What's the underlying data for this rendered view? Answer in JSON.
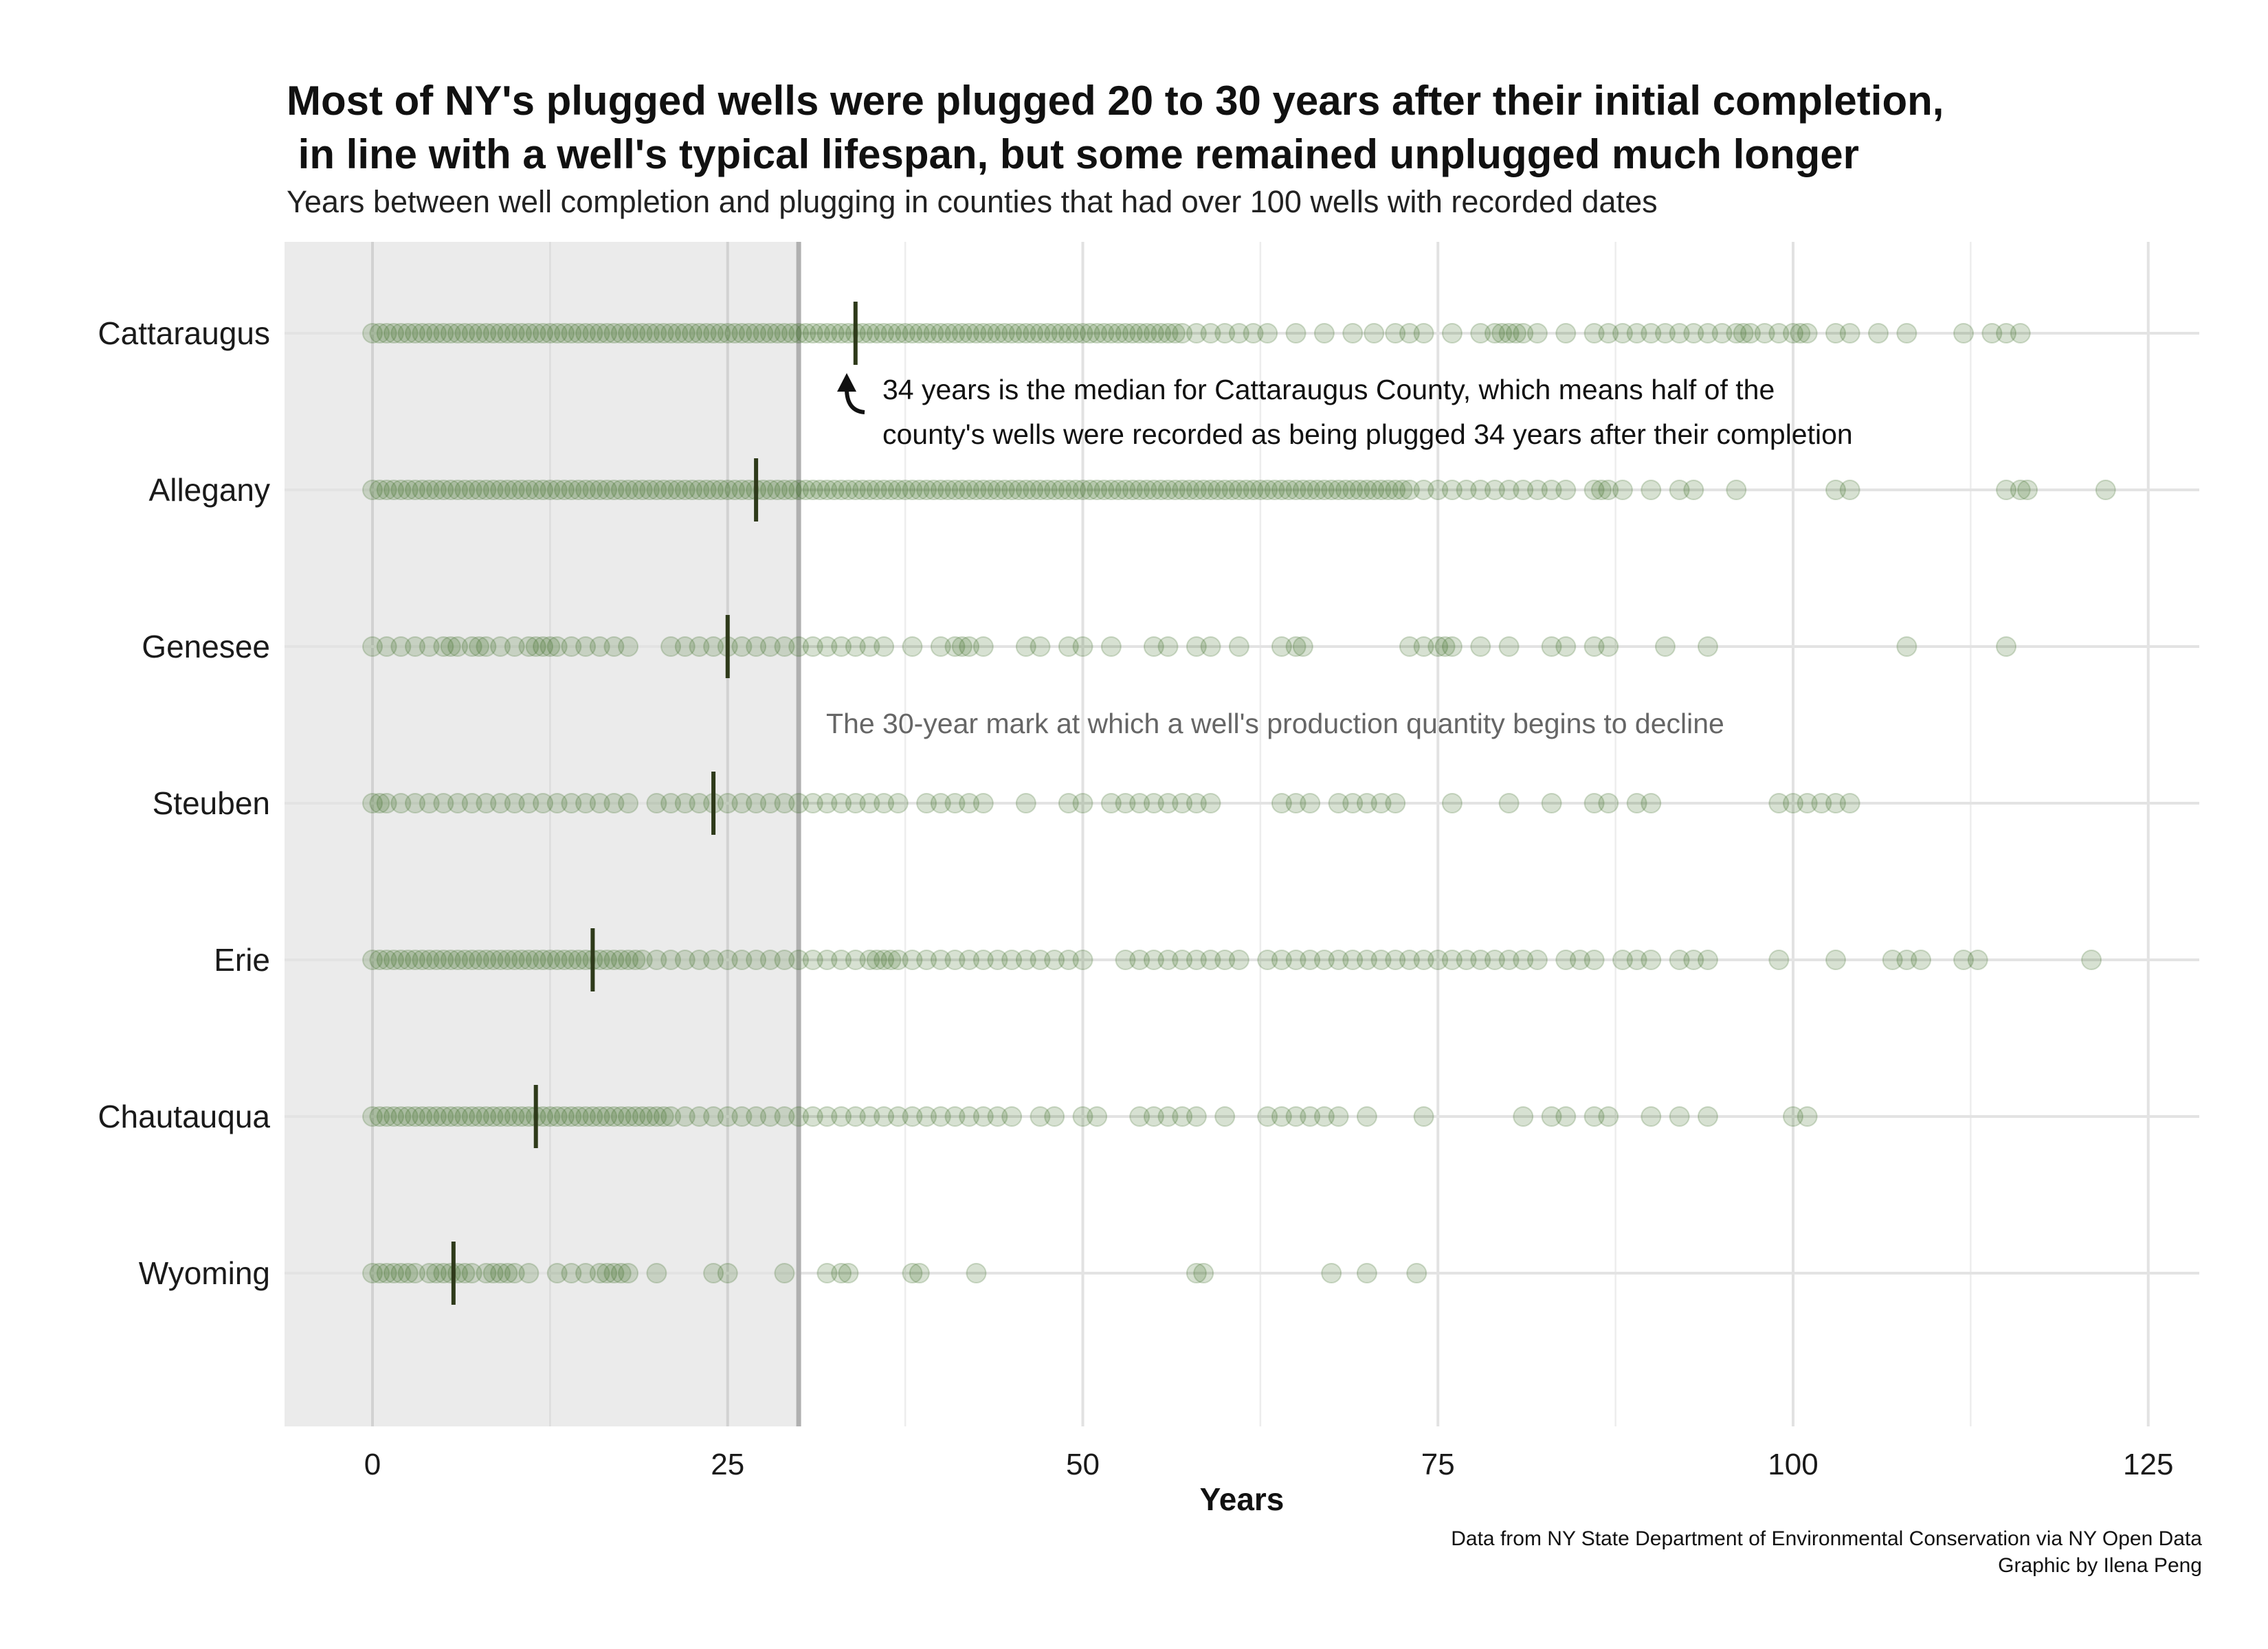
{
  "chart_data": {
    "type": "scatter",
    "title": "Most of NY's plugged wells were plugged 20 to 30 years after their initial completion,\n in line with a well's typical lifespan, but some remained unplugged much longer",
    "subtitle": "Years between well completion and plugging in counties that had over 100 wells with recorded dates",
    "xlabel": "Years",
    "ylabel": "",
    "xlim": [
      -6,
      129
    ],
    "x_ticks": [
      0,
      25,
      50,
      75,
      100,
      125
    ],
    "x_tick_labels": [
      "0",
      "25",
      "50",
      "75",
      "100",
      "125"
    ],
    "grid": true,
    "shaded_region": {
      "from": -6,
      "to": 30
    },
    "reference_line": {
      "x": 30
    },
    "point_color": "#38691e",
    "median_color": "#2e3a1a",
    "counties": [
      "Cattaraugus",
      "Allegany",
      "Genesee",
      "Steuben",
      "Erie",
      "Chautauqua",
      "Wyoming"
    ],
    "medians": [
      34,
      27,
      25,
      24,
      15.5,
      11.5,
      5.7
    ],
    "series": [
      {
        "name": "Cattaraugus",
        "x": [
          0,
          0.5,
          1,
          1.5,
          2,
          2.5,
          3,
          3.5,
          4,
          4.5,
          5,
          5.5,
          6,
          6.5,
          7,
          7.5,
          8,
          8.5,
          9,
          9.5,
          10,
          10.5,
          11,
          11.5,
          12,
          12.5,
          13,
          13.5,
          14,
          14.5,
          15,
          15.5,
          16,
          16.5,
          17,
          17.5,
          18,
          18.5,
          19,
          19.5,
          20,
          20.5,
          21,
          21.5,
          22,
          22.5,
          23,
          23.5,
          24,
          24.5,
          25,
          25.5,
          26,
          26.5,
          27,
          27.5,
          28,
          28.5,
          29,
          29.5,
          30,
          30.5,
          31,
          31.5,
          32,
          32.5,
          33,
          33.5,
          34,
          34.5,
          35,
          35.5,
          36,
          36.5,
          37,
          37.5,
          38,
          38.5,
          39,
          39.5,
          40,
          40.5,
          41,
          41.5,
          42,
          42.5,
          43,
          43.5,
          44,
          44.5,
          45,
          45.5,
          46,
          46.5,
          47,
          47.5,
          48,
          48.5,
          49,
          49.5,
          50,
          50.5,
          51,
          51.5,
          52,
          52.5,
          53,
          53.5,
          54,
          54.5,
          55,
          55.5,
          56,
          56.5,
          57,
          58,
          59,
          60,
          61,
          62,
          63,
          65,
          67,
          69,
          70.5,
          72,
          73,
          74,
          76,
          78,
          79,
          79.5,
          80,
          80.5,
          81,
          82,
          84,
          86,
          87,
          88,
          89,
          90,
          91,
          92,
          93,
          94,
          95,
          96,
          96.5,
          97,
          98,
          99,
          100,
          100.5,
          101,
          103,
          104,
          106,
          108,
          112,
          114,
          115,
          116
        ]
      },
      {
        "name": "Allegany",
        "x": [
          0,
          0.5,
          1,
          1.5,
          2,
          2.5,
          3,
          3.5,
          4,
          4.5,
          5,
          5.5,
          6,
          6.5,
          7,
          7.5,
          8,
          8.5,
          9,
          9.5,
          10,
          10.5,
          11,
          11.5,
          12,
          12.5,
          13,
          13.5,
          14,
          14.5,
          15,
          15.5,
          16,
          16.5,
          17,
          17.5,
          18,
          18.5,
          19,
          19.5,
          20,
          20.5,
          21,
          21.5,
          22,
          22.5,
          23,
          23.5,
          24,
          24.5,
          25,
          25.5,
          26,
          26.5,
          27,
          27.5,
          28,
          28.5,
          29,
          29.5,
          30,
          30.5,
          31,
          31.5,
          32,
          32.5,
          33,
          33.5,
          34,
          34.5,
          35,
          35.5,
          36,
          36.5,
          37,
          37.5,
          38,
          38.5,
          39,
          39.5,
          40,
          40.5,
          41,
          41.5,
          42,
          42.5,
          43,
          43.5,
          44,
          44.5,
          45,
          45.5,
          46,
          46.5,
          47,
          47.5,
          48,
          48.5,
          49,
          49.5,
          50,
          50.5,
          51,
          51.5,
          52,
          52.5,
          53,
          53.5,
          54,
          54.5,
          55,
          55.5,
          56,
          56.5,
          57,
          57.5,
          58,
          58.5,
          59,
          59.5,
          60,
          60.5,
          61,
          61.5,
          62,
          62.5,
          63,
          63.5,
          64,
          64.5,
          65,
          65.5,
          66,
          66.5,
          67,
          67.5,
          68,
          68.5,
          69,
          69.5,
          70,
          70.5,
          71,
          71.5,
          72,
          72.5,
          73,
          74,
          75,
          76,
          77,
          78,
          79,
          80,
          81,
          82,
          83,
          84,
          86,
          86.5,
          87,
          88,
          90,
          92,
          93,
          96,
          103,
          104,
          115,
          116,
          116.5,
          122
        ]
      },
      {
        "name": "Genesee",
        "x": [
          0,
          1,
          2,
          3,
          4,
          5,
          5.5,
          6,
          7,
          7.5,
          8,
          9,
          10,
          11,
          11.5,
          12,
          12.5,
          13,
          14,
          15,
          16,
          17,
          18,
          21,
          22,
          23,
          24,
          25,
          26,
          27,
          28,
          29,
          30,
          31,
          32,
          33,
          34,
          35,
          36,
          38,
          40,
          41,
          41.5,
          42,
          43,
          46,
          47,
          49,
          50,
          52,
          55,
          56,
          58,
          59,
          61,
          64,
          65,
          65.5,
          73,
          74,
          75,
          75.5,
          76,
          78,
          80,
          83,
          84,
          86,
          87,
          91,
          94,
          108,
          115
        ]
      },
      {
        "name": "Steuben",
        "x": [
          0,
          0.5,
          1,
          2,
          3,
          4,
          5,
          6,
          7,
          8,
          9,
          10,
          11,
          12,
          13,
          14,
          15,
          16,
          17,
          18,
          20,
          21,
          22,
          23,
          24,
          25,
          26,
          27,
          28,
          29,
          30,
          31,
          32,
          33,
          34,
          35,
          36,
          37,
          39,
          40,
          41,
          42,
          43,
          46,
          49,
          50,
          52,
          53,
          54,
          55,
          56,
          57,
          58,
          59,
          64,
          65,
          66,
          68,
          69,
          70,
          71,
          72,
          76,
          80,
          83,
          86,
          87,
          89,
          90,
          99,
          100,
          101,
          102,
          103,
          104
        ]
      },
      {
        "name": "Erie",
        "x": [
          0,
          0.5,
          1,
          1.5,
          2,
          2.5,
          3,
          3.5,
          4,
          4.5,
          5,
          5.5,
          6,
          6.5,
          7,
          7.5,
          8,
          8.5,
          9,
          9.5,
          10,
          10.5,
          11,
          11.5,
          12,
          12.5,
          13,
          13.5,
          14,
          14.5,
          15,
          15.5,
          16,
          16.5,
          17,
          17.5,
          18,
          18.5,
          19,
          20,
          21,
          22,
          23,
          24,
          25,
          26,
          27,
          28,
          29,
          30,
          31,
          32,
          33,
          34,
          35,
          35.5,
          36,
          36.5,
          37,
          38,
          39,
          40,
          41,
          42,
          43,
          44,
          45,
          46,
          47,
          48,
          49,
          50,
          53,
          54,
          55,
          56,
          57,
          58,
          59,
          60,
          61,
          63,
          64,
          65,
          66,
          67,
          68,
          69,
          70,
          71,
          72,
          73,
          74,
          75,
          76,
          77,
          78,
          79,
          80,
          81,
          82,
          84,
          85,
          86,
          88,
          89,
          90,
          92,
          93,
          94,
          99,
          103,
          107,
          108,
          109,
          112,
          113,
          121
        ]
      },
      {
        "name": "Chautauqua",
        "x": [
          0,
          0.5,
          1,
          1.5,
          2,
          2.5,
          3,
          3.5,
          4,
          4.5,
          5,
          5.5,
          6,
          6.5,
          7,
          7.5,
          8,
          8.5,
          9,
          9.5,
          10,
          10.5,
          11,
          11.5,
          12,
          12.5,
          13,
          13.5,
          14,
          14.5,
          15,
          15.5,
          16,
          16.5,
          17,
          17.5,
          18,
          18.5,
          19,
          19.5,
          20,
          20.5,
          21,
          22,
          23,
          24,
          25,
          26,
          27,
          28,
          29,
          30,
          31,
          32,
          33,
          34,
          35,
          36,
          37,
          38,
          39,
          40,
          41,
          42,
          43,
          44,
          45,
          47,
          48,
          50,
          51,
          54,
          55,
          56,
          57,
          58,
          60,
          63,
          64,
          65,
          66,
          67,
          68,
          70,
          74,
          81,
          83,
          84,
          86,
          87,
          90,
          92,
          94,
          100,
          101
        ]
      },
      {
        "name": "Wyoming",
        "x": [
          0,
          0.5,
          1,
          1.5,
          2,
          2.5,
          3,
          4,
          4.5,
          5,
          5.5,
          6,
          6.5,
          7,
          8,
          8.5,
          9,
          9.5,
          10,
          11,
          13,
          14,
          15,
          16,
          16.5,
          17,
          17.5,
          18,
          20,
          24,
          25,
          29,
          32,
          33,
          33.5,
          38,
          38.5,
          42.5,
          58,
          58.5,
          67.5,
          70,
          73.5
        ]
      }
    ],
    "annotations": [
      "34 years is the median for Cattaraugus County, which means half of the",
      "county's wells were recorded as being plugged 34 years after their completion",
      "The 30-year mark at which a well's production quantity begins to decline"
    ]
  },
  "caption": {
    "line1": "Data from NY State Department of Environmental Conservation via NY Open Data",
    "line2": "Graphic by Ilena Peng"
  }
}
